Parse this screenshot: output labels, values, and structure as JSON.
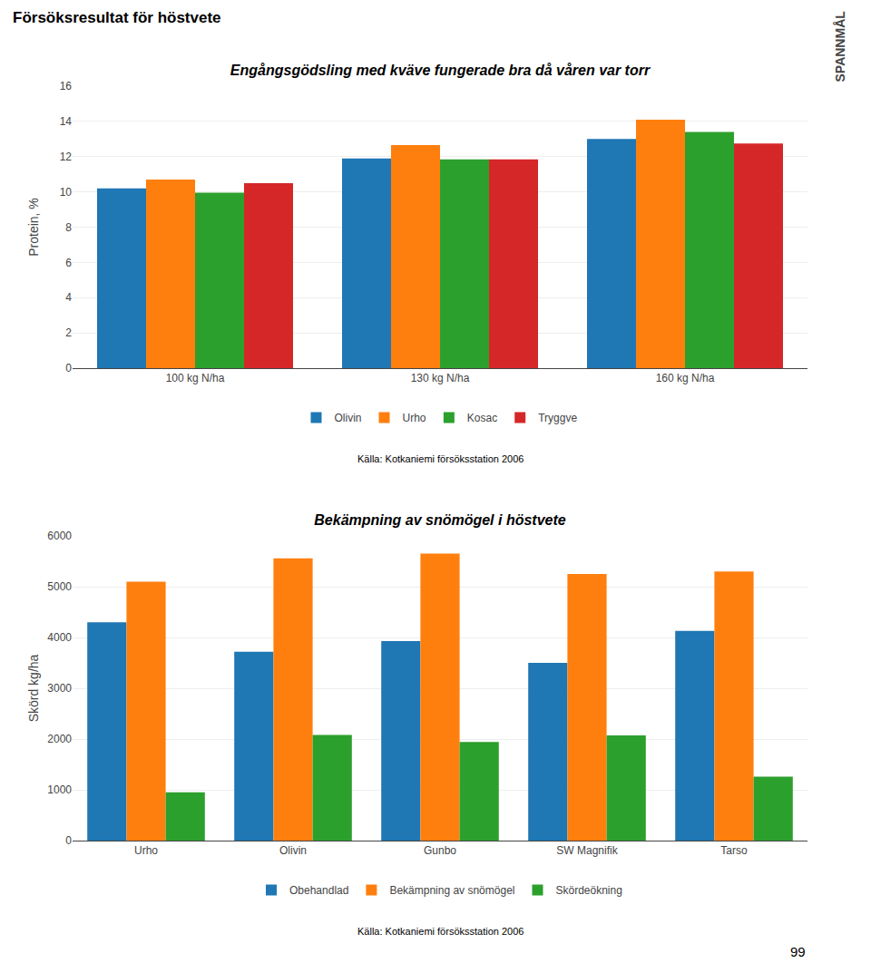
{
  "chart_data": [
    {
      "type": "bar",
      "title": "Engångsgödsling med kväve fungerade bra då våren var torr",
      "ylabel": "Protein, %",
      "categories": [
        "100 kg N/ha",
        "130 kg N/ha",
        "160 kg N/ha"
      ],
      "series": [
        {
          "name": "Olivin",
          "values": [
            10.2,
            11.9,
            13.0
          ]
        },
        {
          "name": "Urho",
          "values": [
            10.7,
            12.65,
            14.1
          ]
        },
        {
          "name": "Kosac",
          "values": [
            9.95,
            11.85,
            13.4
          ]
        },
        {
          "name": "Tryggve",
          "values": [
            10.5,
            11.85,
            12.75
          ]
        }
      ],
      "ylim": [
        0,
        16
      ],
      "yticks": [
        0,
        2,
        4,
        6,
        8,
        10,
        12,
        14,
        16
      ],
      "grid": true,
      "legend": "bottom",
      "annotations": [
        "Försöksresultat för höstvete",
        "SPANNMÅL",
        "Källa: Kotkaniemi försöksstation 2006"
      ]
    },
    {
      "type": "bar",
      "title": "Bekämpning av snömögel i höstvete",
      "ylabel": "Skörd kg/ha",
      "categories": [
        "Urho",
        "Olivin",
        "Gunbo",
        "SW Magnifik",
        "Tarso"
      ],
      "series": [
        {
          "name": "Obehandlad",
          "values": [
            4300,
            3720,
            3930,
            3500,
            4130
          ]
        },
        {
          "name": "Bekämpning av snömögel",
          "values": [
            5100,
            5560,
            5650,
            5250,
            5300
          ]
        },
        {
          "name": "Skördeökning",
          "values": [
            950,
            2080,
            1940,
            2070,
            1260
          ]
        }
      ],
      "ylim": [
        0,
        6000
      ],
      "yticks": [
        0,
        1000,
        2000,
        3000,
        4000,
        5000,
        6000
      ],
      "grid": true,
      "legend": "bottom",
      "annotations": [
        "Källa: Kotkaniemi försöksstation 2006",
        "99"
      ]
    }
  ]
}
